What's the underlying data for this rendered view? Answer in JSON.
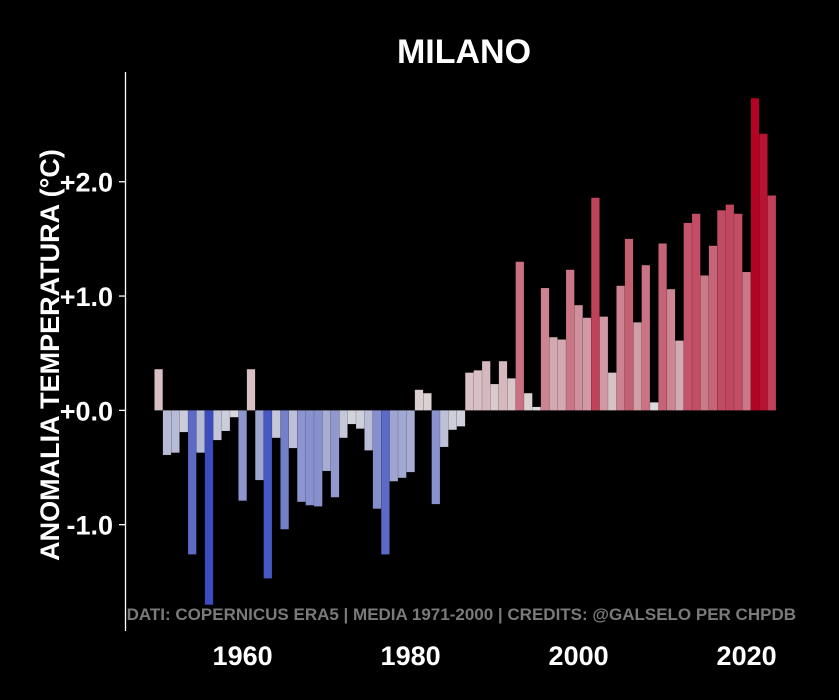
{
  "chart_data": {
    "type": "bar",
    "title": "MILANO",
    "xlabel": "",
    "ylabel": "ANOMALIA TEMPERATURA (°C)",
    "credit": "DATI: COPERNICUS ERA5 | MEDIA 1971-2000 | CREDITS: @GALSELO PER CHPDB",
    "xlim": [
      1946,
      2031
    ],
    "ylim": [
      -1.93,
      2.96
    ],
    "x_ticks": [
      1960,
      1980,
      2000,
      2020
    ],
    "x_tick_labels": [
      "1960",
      "1980",
      "2000",
      "2020"
    ],
    "y_ticks": [
      -1.0,
      0.0,
      1.0,
      2.0
    ],
    "y_tick_labels": [
      "-1.0",
      "+0.0",
      "+1.0",
      "+2.0"
    ],
    "years": [
      1950,
      1951,
      1952,
      1953,
      1954,
      1955,
      1956,
      1957,
      1958,
      1959,
      1960,
      1961,
      1962,
      1963,
      1964,
      1965,
      1966,
      1967,
      1968,
      1969,
      1970,
      1971,
      1972,
      1973,
      1974,
      1975,
      1976,
      1977,
      1978,
      1979,
      1980,
      1981,
      1982,
      1983,
      1984,
      1985,
      1986,
      1987,
      1988,
      1989,
      1990,
      1991,
      1992,
      1993,
      1994,
      1995,
      1996,
      1997,
      1998,
      1999,
      2000,
      2001,
      2002,
      2003,
      2004,
      2005,
      2006,
      2007,
      2008,
      2009,
      2010,
      2011,
      2012,
      2013,
      2014,
      2015,
      2016,
      2017,
      2018,
      2019,
      2020,
      2021,
      2022,
      2023,
      2024
    ],
    "values": [
      0.36,
      -0.39,
      -0.37,
      -0.19,
      -1.26,
      -0.37,
      -1.7,
      -0.26,
      -0.18,
      -0.06,
      -0.79,
      0.36,
      -0.61,
      -1.47,
      -0.24,
      -1.04,
      -0.33,
      -0.8,
      -0.83,
      -0.84,
      -0.53,
      -0.76,
      -0.24,
      -0.12,
      -0.16,
      -0.35,
      -0.86,
      -1.26,
      -0.62,
      -0.59,
      -0.54,
      0.18,
      0.15,
      -0.82,
      -0.32,
      -0.17,
      -0.14,
      0.33,
      0.35,
      0.43,
      0.23,
      0.43,
      0.28,
      1.3,
      0.15,
      0.03,
      1.07,
      0.64,
      0.62,
      1.23,
      0.92,
      0.81,
      1.86,
      0.82,
      0.33,
      1.09,
      1.5,
      0.77,
      1.27,
      0.07,
      1.46,
      1.06,
      0.61,
      1.64,
      1.72,
      1.18,
      1.44,
      1.75,
      1.8,
      1.72,
      1.21,
      2.73,
      2.42,
      1.88,
      0.0
    ],
    "colors": {
      "background": "#000000",
      "text": "#ffffff",
      "credit": "#7a7a7a",
      "scale_cold": "#3b4cc0",
      "scale_mid": "#dddddd",
      "scale_hot": "#b40426"
    }
  }
}
